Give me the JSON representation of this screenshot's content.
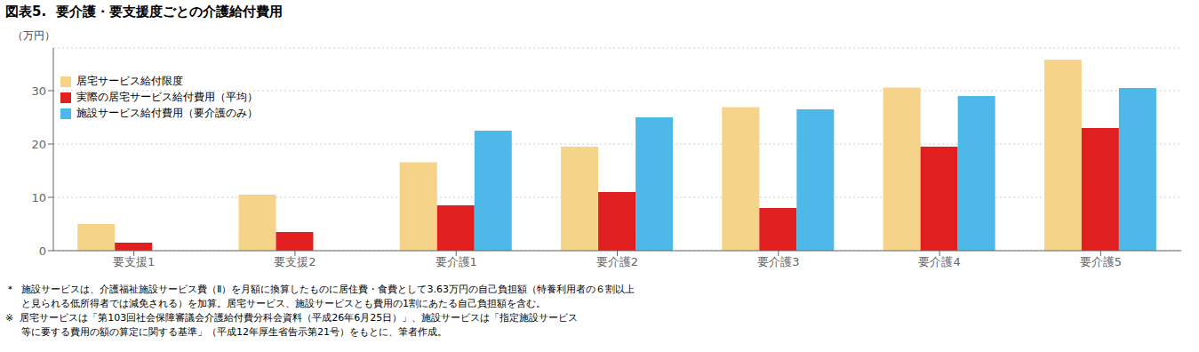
{
  "chart_data": {
    "type": "bar",
    "title": "図表5.  要介護・要支援度ごとの介護給付費用",
    "ylabel": "（万円）",
    "categories": [
      "要支援1",
      "要支援2",
      "要介護1",
      "要介護2",
      "要介護3",
      "要介護4",
      "要介護5"
    ],
    "series": [
      {
        "name": "居宅サービス給付限度",
        "color": "#F5D48A",
        "values": [
          5.0,
          10.5,
          16.6,
          19.5,
          26.9,
          30.6,
          35.8
        ]
      },
      {
        "name": "実際の居宅サービス給付費用（平均）",
        "color": "#E02020",
        "values": [
          1.5,
          3.5,
          8.5,
          11.0,
          8.0,
          19.5,
          23.0
        ]
      },
      {
        "name": "施設サービス給付費用（要介護のみ）",
        "color": "#4EB8E8",
        "values": [
          null,
          null,
          22.5,
          25.0,
          26.5,
          29.0,
          30.5
        ]
      }
    ],
    "ylim": [
      0,
      38
    ],
    "yticks": [
      0,
      10,
      20,
      30
    ],
    "grid": true,
    "legend": "upper left",
    "annotations": [
      "＊  施設サービスは、介護福祉施設サービス費（Ⅱ）を月額に換算したものに居住費・食費として3.63万円の自己負担額（特養利用者の６割以上",
      "　  と見られる低所得者では減免される）を加算。居宅サービス、施設サービスとも費用の1割にあたる自己負担額を含む。",
      "※  居宅サービスは「第103回社会保障審議会介護給付費分科会資料（平成26年6月25日）」、施設サービスは「指定施設サービス",
      "　  等に要する費用の額の算定に関する基準」（平成12年厚生省告示第21号）をもとに、筆者作成。"
    ]
  }
}
